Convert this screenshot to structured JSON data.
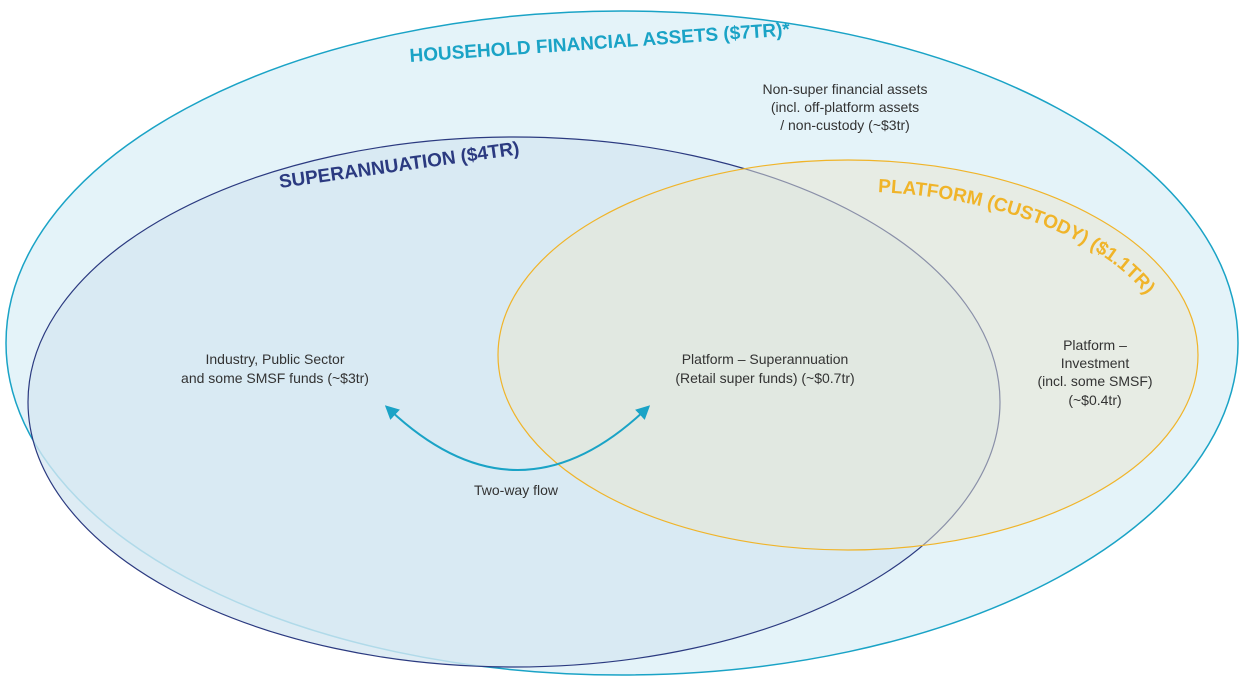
{
  "household": {
    "title": "HOUSEHOLD FINANCIAL ASSETS ($7TR)*",
    "note": [
      "Non-super financial assets",
      "(incl. off-platform assets",
      "/ non-custody  (~$3tr)"
    ]
  },
  "superannuation": {
    "title": "SUPERANNUATION ($4TR)",
    "note": [
      "Industry, Public Sector",
      "and some SMSF funds (~$3tr)"
    ]
  },
  "platform": {
    "title": "PLATFORM (CUSTODY) ($1.1TR)",
    "overlap_note": [
      "Platform – Superannuation",
      "(Retail super funds) (~$0.7tr)"
    ],
    "note": [
      "Platform –",
      "Investment",
      "(incl. some SMSF)",
      "(~$0.4tr)"
    ]
  },
  "flow": {
    "label": "Two-way flow"
  }
}
